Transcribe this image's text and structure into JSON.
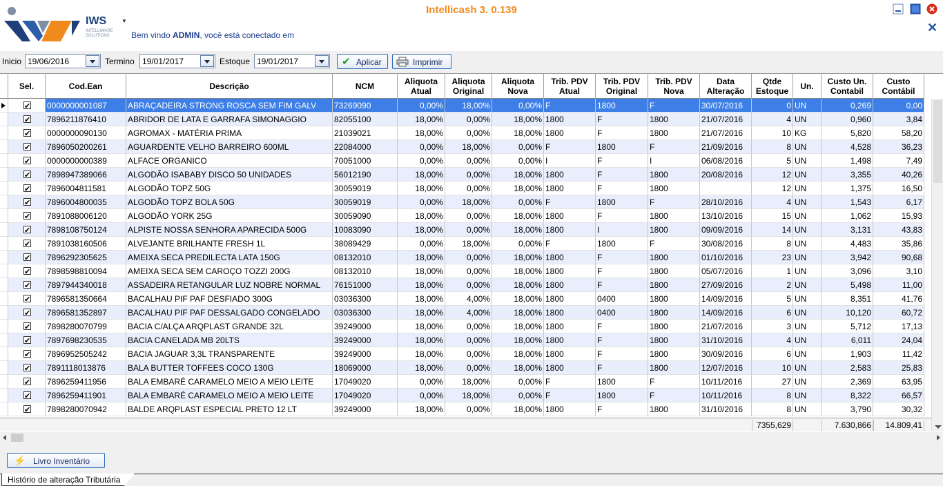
{
  "app": {
    "title": "Intellicash 3. 0.139",
    "logo_text": "IWS",
    "logo_subtext": "INTELLIWARE SOLUTIONS",
    "welcome_prefix": "Bem vindo ",
    "welcome_user": "ADMIN",
    "welcome_suffix": ", você está conectado em"
  },
  "toolbar": {
    "inicio_label": "Inicio",
    "inicio_value": "19/06/2016",
    "termino_label": "Termino",
    "termino_value": "19/01/2017",
    "estoque_label": "Estoque",
    "estoque_value": "19/01/2017",
    "aplicar_label": "Aplicar",
    "imprimir_label": "Imprimir"
  },
  "grid": {
    "headers": [
      "Sel.",
      "Cod.Ean",
      "Descrição",
      "NCM",
      "Aliquota\nAtual",
      "Aliquota\nOriginal",
      "Aliquota\nNova",
      "Trib. PDV\nAtual",
      "Trib. PDV\nOriginal",
      "Trib. PDV\nNova",
      "Data\nAlteração",
      "Qtde\nEstoque",
      "Un.",
      "Custo Un.\nContabil",
      "Custo\nContábil"
    ],
    "rows": [
      [
        "0000000001087",
        "ABRAÇADEIRA STRONG ROSCA SEM FIM GALV",
        "73269090",
        "0,00%",
        "18,00%",
        "0,00%",
        "F",
        "1800",
        "F",
        "30/07/2016",
        "0",
        "UN",
        "0,269",
        "0,00"
      ],
      [
        "7896211876410",
        "ABRIDOR DE LATA  E GARRAFA SIMONAGGIO",
        "82055100",
        "18,00%",
        "0,00%",
        "18,00%",
        "1800",
        "F",
        "1800",
        "21/07/2016",
        "4",
        "UN",
        "0,960",
        "3,84"
      ],
      [
        "0000000090130",
        "AGROMAX - MATÉRIA PRIMA",
        "21039021",
        "18,00%",
        "0,00%",
        "18,00%",
        "1800",
        "F",
        "1800",
        "21/07/2016",
        "10",
        "KG",
        "5,820",
        "58,20"
      ],
      [
        "7896050200261",
        "AGUARDENTE VELHO BARREIRO 600ML",
        "22084000",
        "0,00%",
        "18,00%",
        "0,00%",
        "F",
        "1800",
        "F",
        "21/09/2016",
        "8",
        "UN",
        "4,528",
        "36,23"
      ],
      [
        "0000000000389",
        "ALFACE ORGANICO",
        "70051000",
        "0,00%",
        "0,00%",
        "0,00%",
        "I",
        "F",
        "I",
        "06/08/2016",
        "5",
        "UN",
        "1,498",
        "7,49"
      ],
      [
        "7898947389066",
        "ALGODÃO ISABABY DISCO 50 UNIDADES",
        "56012190",
        "18,00%",
        "0,00%",
        "18,00%",
        "1800",
        "F",
        "1800",
        "20/08/2016",
        "12",
        "UN",
        "3,355",
        "40,26"
      ],
      [
        "7896004811581",
        "ALGODÃO TOPZ  50G",
        "30059019",
        "18,00%",
        "0,00%",
        "18,00%",
        "1800",
        "F",
        "1800",
        "",
        "12",
        "UN",
        "1,375",
        "16,50"
      ],
      [
        "7896004800035",
        "ALGODÃO TOPZ BOLA 50G",
        "30059019",
        "0,00%",
        "18,00%",
        "0,00%",
        "F",
        "1800",
        "F",
        "28/10/2016",
        "4",
        "UN",
        "1,543",
        "6,17"
      ],
      [
        "7891088006120",
        "ALGODÃO YORK 25G",
        "30059090",
        "18,00%",
        "0,00%",
        "18,00%",
        "1800",
        "F",
        "1800",
        "13/10/2016",
        "15",
        "UN",
        "1,062",
        "15,93"
      ],
      [
        "7898108750124",
        "ALPISTE NOSSA SENHORA APARECIDA 500G",
        "10083090",
        "18,00%",
        "0,00%",
        "18,00%",
        "1800",
        "I",
        "1800",
        "09/09/2016",
        "14",
        "UN",
        "3,131",
        "43,83"
      ],
      [
        "7891038160506",
        "ALVEJANTE BRILHANTE FRESH 1L",
        "38089429",
        "0,00%",
        "18,00%",
        "0,00%",
        "F",
        "1800",
        "F",
        "30/08/2016",
        "8",
        "UN",
        "4,483",
        "35,86"
      ],
      [
        "7896292305625",
        "AMEIXA SECA PREDILECTA LATA 150G",
        "08132010",
        "18,00%",
        "0,00%",
        "18,00%",
        "1800",
        "F",
        "1800",
        "01/10/2016",
        "23",
        "UN",
        "3,942",
        "90,68"
      ],
      [
        "7898598810094",
        "AMEIXA SECA SEM CAROÇO TOZZI 200G",
        "08132010",
        "18,00%",
        "0,00%",
        "18,00%",
        "1800",
        "F",
        "1800",
        "05/07/2016",
        "1",
        "UN",
        "3,096",
        "3,10"
      ],
      [
        "7897944340018",
        "ASSADEIRA RETANGULAR LUZ NOBRE NORMAL",
        "76151000",
        "18,00%",
        "0,00%",
        "18,00%",
        "1800",
        "F",
        "1800",
        "27/09/2016",
        "2",
        "UN",
        "5,498",
        "11,00"
      ],
      [
        "7896581350664",
        "BACALHAU PIF PAF DESFIADO 300G",
        "03036300",
        "18,00%",
        "4,00%",
        "18,00%",
        "1800",
        "0400",
        "1800",
        "14/09/2016",
        "5",
        "UN",
        "8,351",
        "41,76"
      ],
      [
        "7896581352897",
        "BACALHAU PIF PAF DESSALGADO CONGELADO",
        "03036300",
        "18,00%",
        "4,00%",
        "18,00%",
        "1800",
        "0400",
        "1800",
        "14/09/2016",
        "6",
        "UN",
        "10,120",
        "60,72"
      ],
      [
        "7898280070799",
        "BACIA C/ALÇA ARQPLAST GRANDE 32L",
        "39249000",
        "18,00%",
        "0,00%",
        "18,00%",
        "1800",
        "F",
        "1800",
        "21/07/2016",
        "3",
        "UN",
        "5,712",
        "17,13"
      ],
      [
        "7897698230535",
        "BACIA CANELADA MB 20LTS",
        "39249000",
        "18,00%",
        "0,00%",
        "18,00%",
        "1800",
        "F",
        "1800",
        "31/10/2016",
        "4",
        "UN",
        "6,011",
        "24,04"
      ],
      [
        "7896952505242",
        "BACIA JAGUAR 3,3L TRANSPARENTE",
        "39249000",
        "18,00%",
        "0,00%",
        "18,00%",
        "1800",
        "F",
        "1800",
        "30/09/2016",
        "6",
        "UN",
        "1,903",
        "11,42"
      ],
      [
        "7891118013876",
        "BALA BUTTER TOFFEES COCO 130G",
        "18069000",
        "18,00%",
        "0,00%",
        "18,00%",
        "1800",
        "F",
        "1800",
        "12/07/2016",
        "10",
        "UN",
        "2,583",
        "25,83"
      ],
      [
        "7896259411956",
        "BALA EMBARÉ CARAMELO MEIO A MEIO LEITE",
        "17049020",
        "0,00%",
        "18,00%",
        "0,00%",
        "F",
        "1800",
        "F",
        "10/11/2016",
        "27",
        "UN",
        "2,369",
        "63,95"
      ],
      [
        "7896259411901",
        "BALA EMBARÉ CARAMELO MEIO A MEIO LEITE",
        "17049020",
        "0,00%",
        "18,00%",
        "0,00%",
        "F",
        "1800",
        "F",
        "10/11/2016",
        "8",
        "UN",
        "8,322",
        "66,57"
      ],
      [
        "7898280070942",
        "BALDE ARQPLAST ESPECIAL PRETO 12 LT",
        "39249000",
        "18,00%",
        "0,00%",
        "18,00%",
        "1800",
        "F",
        "1800",
        "31/10/2016",
        "8",
        "UN",
        "3,790",
        "30,32"
      ]
    ],
    "totals": {
      "qtde_estoque": "7355,629",
      "custo_un_contabil": "7.630,866",
      "custo_contabil": "14.809,41"
    }
  },
  "bottom": {
    "livro_label": "Livro Inventário",
    "tab_label": "Histório de alteração Tributária"
  },
  "colors": {
    "accent": "#f08a1c",
    "selection": "#3d7fe6",
    "alt_row": "#e8eefb",
    "link_blue": "#1b3f8f"
  }
}
